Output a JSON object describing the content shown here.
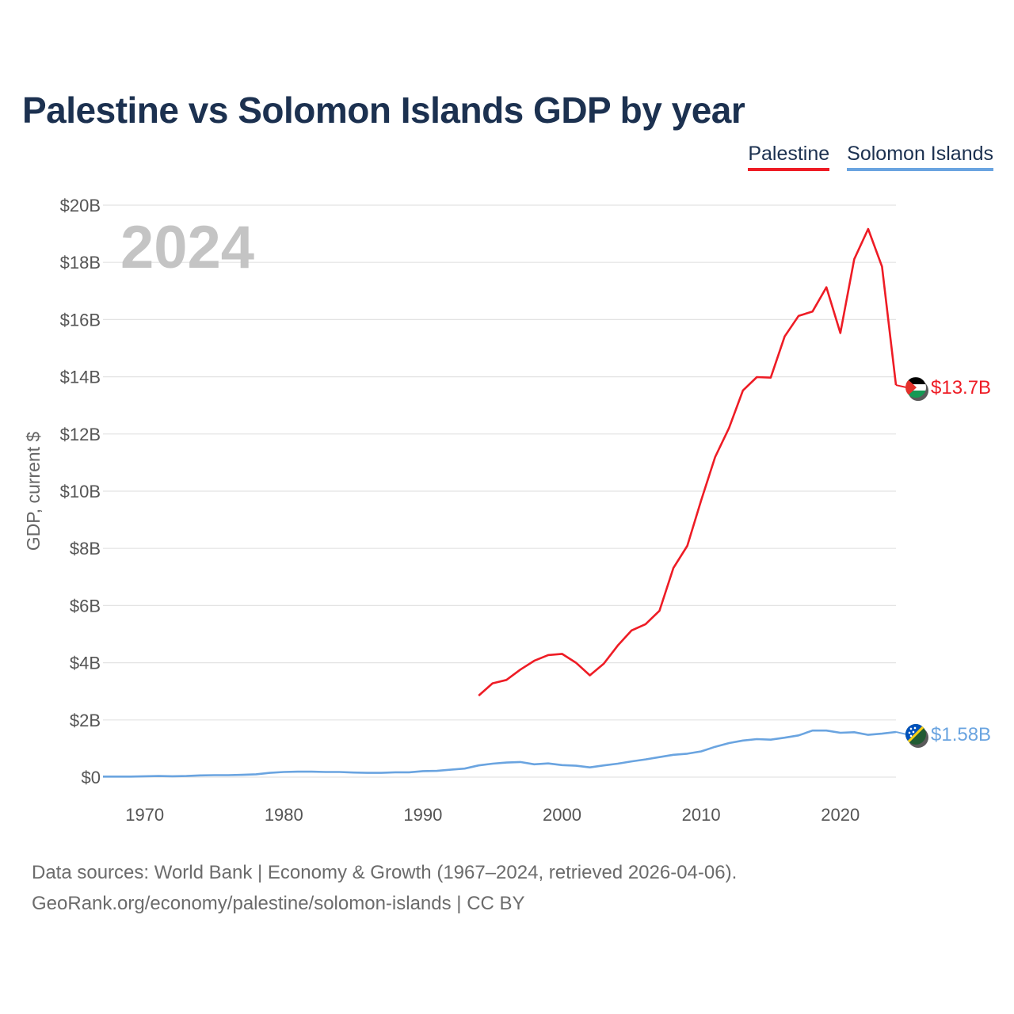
{
  "title": "Palestine vs Solomon Islands GDP by year",
  "legend": [
    {
      "name": "Palestine",
      "color": "#ee1c25"
    },
    {
      "name": "Solomon Islands",
      "color": "#6aa4e0"
    }
  ],
  "footer": {
    "line1": "Data sources: World Bank | Economy & Growth (1967–2024, retrieved 2026-04-06).",
    "line2": "GeoRank.org/economy/palestine/solomon-islands | CC BY"
  },
  "chart_data": {
    "type": "line",
    "title": "Palestine vs Solomon Islands GDP by year",
    "ylabel": "GDP, current $",
    "xlabel": "",
    "year_label": "2024",
    "xlim": [
      1967,
      2024
    ],
    "ylim": [
      0,
      20
    ],
    "x_ticks": [
      1970,
      1980,
      1990,
      2000,
      2010,
      2020
    ],
    "y_ticks": [
      0,
      2,
      4,
      6,
      8,
      10,
      12,
      14,
      16,
      18,
      20
    ],
    "y_tick_labels": [
      "$0",
      "$2B",
      "$4B",
      "$6B",
      "$8B",
      "$10B",
      "$12B",
      "$14B",
      "$16B",
      "$18B",
      "$20B"
    ],
    "grid": true,
    "series": [
      {
        "name": "Palestine",
        "color": "#ee1c25",
        "end_label": "$13.7B",
        "x": [
          1994,
          1995,
          1996,
          1997,
          1998,
          1999,
          2000,
          2001,
          2002,
          2003,
          2004,
          2005,
          2006,
          2007,
          2008,
          2009,
          2010,
          2011,
          2012,
          2013,
          2014,
          2015,
          2016,
          2017,
          2018,
          2019,
          2020,
          2021,
          2022,
          2023,
          2024
        ],
        "values": [
          2.85,
          3.28,
          3.4,
          3.76,
          4.07,
          4.27,
          4.31,
          4.0,
          3.56,
          3.97,
          4.6,
          5.13,
          5.35,
          5.82,
          7.31,
          8.09,
          9.68,
          11.19,
          12.21,
          13.52,
          13.99,
          13.97,
          15.41,
          16.13,
          16.28,
          17.13,
          15.53,
          18.11,
          19.17,
          17.85,
          13.71
        ]
      },
      {
        "name": "Solomon Islands",
        "color": "#6aa4e0",
        "end_label": "$1.58B",
        "x": [
          1967,
          1968,
          1969,
          1970,
          1971,
          1972,
          1973,
          1974,
          1975,
          1976,
          1977,
          1978,
          1979,
          1980,
          1981,
          1982,
          1983,
          1984,
          1985,
          1986,
          1987,
          1988,
          1989,
          1990,
          1991,
          1992,
          1993,
          1994,
          1995,
          1996,
          1997,
          1998,
          1999,
          2000,
          2001,
          2002,
          2003,
          2004,
          2005,
          2006,
          2007,
          2008,
          2009,
          2010,
          2011,
          2012,
          2013,
          2014,
          2015,
          2016,
          2017,
          2018,
          2019,
          2020,
          2021,
          2022,
          2023,
          2024
        ],
        "values": [
          0.02,
          0.02,
          0.02,
          0.03,
          0.04,
          0.03,
          0.04,
          0.06,
          0.07,
          0.07,
          0.08,
          0.1,
          0.15,
          0.18,
          0.19,
          0.19,
          0.18,
          0.18,
          0.16,
          0.15,
          0.15,
          0.17,
          0.17,
          0.21,
          0.22,
          0.26,
          0.3,
          0.41,
          0.47,
          0.51,
          0.53,
          0.45,
          0.48,
          0.42,
          0.4,
          0.34,
          0.41,
          0.47,
          0.55,
          0.62,
          0.7,
          0.78,
          0.82,
          0.9,
          1.06,
          1.19,
          1.28,
          1.33,
          1.31,
          1.38,
          1.46,
          1.63,
          1.63,
          1.55,
          1.57,
          1.48,
          1.52,
          1.58
        ]
      }
    ]
  }
}
